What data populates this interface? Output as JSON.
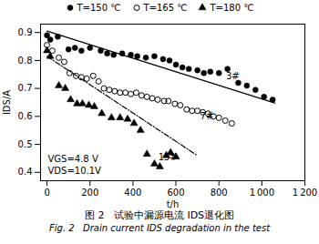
{
  "chart_data": {
    "type": "scatter",
    "title": "图 2   试验中漏源电流 IDS退化图",
    "subtitle": "Fig. 2   Drain current IDS degradation in the test",
    "xlabel": "t/h",
    "ylabel": "IDS/A",
    "xlim": [
      -30,
      1200
    ],
    "ylim": [
      0.37,
      0.93
    ],
    "xticks": [
      0,
      200,
      400,
      600,
      800,
      {
        "value": 1000,
        "label": "1 000"
      },
      {
        "value": 1200,
        "label": "1 200"
      }
    ],
    "yticks": [
      0.4,
      0.5,
      0.6,
      0.7,
      0.8,
      0.9
    ],
    "grid": false,
    "legend": "top",
    "series": [
      {
        "name": "T=150 ℃",
        "color": "black",
        "marker": "circle",
        "x": [
          0,
          15,
          50,
          100,
          130,
          160,
          200,
          250,
          280,
          310,
          350,
          390,
          420,
          460,
          500,
          540,
          570,
          600,
          630,
          660,
          700,
          730,
          760,
          800,
          840,
          890,
          930,
          970,
          1010,
          1050
        ],
        "values": [
          0.89,
          0.875,
          0.885,
          0.84,
          0.845,
          0.835,
          0.845,
          0.835,
          0.825,
          0.82,
          0.825,
          0.82,
          0.815,
          0.81,
          0.815,
          0.805,
          0.8,
          0.785,
          0.775,
          0.77,
          0.765,
          0.755,
          0.76,
          0.755,
          0.77,
          0.72,
          0.71,
          0.695,
          0.67,
          0.66
        ]
      },
      {
        "name": "T=165 ℃",
        "color": "black",
        "marker": "open-circle",
        "x": [
          0,
          25,
          55,
          80,
          105,
          135,
          160,
          185,
          215,
          240,
          265,
          290,
          315,
          340,
          365,
          390,
          415,
          440,
          465,
          490,
          515,
          545,
          565,
          595,
          620,
          650,
          675,
          700,
          725,
          750,
          775,
          800,
          830,
          860
        ],
        "values": [
          0.855,
          0.835,
          0.81,
          0.795,
          0.755,
          0.745,
          0.74,
          0.735,
          0.745,
          0.725,
          0.7,
          0.695,
          0.69,
          0.685,
          0.685,
          0.68,
          0.685,
          0.675,
          0.67,
          0.665,
          0.66,
          0.655,
          0.655,
          0.645,
          0.64,
          0.625,
          0.62,
          0.62,
          0.615,
          0.61,
          0.6,
          0.595,
          0.585,
          0.575
        ]
      },
      {
        "name": "T=180 ℃",
        "color": "black",
        "marker": "triangle",
        "x": [
          0,
          15,
          55,
          85,
          110,
          140,
          165,
          195,
          220,
          255,
          300,
          340,
          375,
          405,
          435,
          465,
          500,
          525,
          555,
          575,
          600
        ],
        "values": [
          0.835,
          0.815,
          0.71,
          0.7,
          0.66,
          0.645,
          0.645,
          0.64,
          0.635,
          0.61,
          0.595,
          0.595,
          0.59,
          0.575,
          0.55,
          0.465,
          0.43,
          0.42,
          0.46,
          0.47,
          0.455
        ]
      },
      {
        "type": "line",
        "color": "black",
        "line_style": "solid",
        "x": [
          0,
          1060
        ],
        "values": [
          0.905,
          0.648
        ]
      },
      {
        "type": "line",
        "color": "black",
        "line_style": "dashdot",
        "x": [
          0,
          700
        ],
        "values": [
          0.815,
          0.46
        ]
      }
    ],
    "annotations": [
      {
        "x": 820,
        "y": 0.745,
        "text": "3#"
      },
      {
        "x": 700,
        "y": 0.6,
        "text": "7#"
      },
      {
        "x": 505,
        "y": 0.455,
        "text": "15#"
      },
      {
        "text": "VGS=4.8 V"
      },
      {
        "text": "VDS=10.1V"
      }
    ]
  }
}
